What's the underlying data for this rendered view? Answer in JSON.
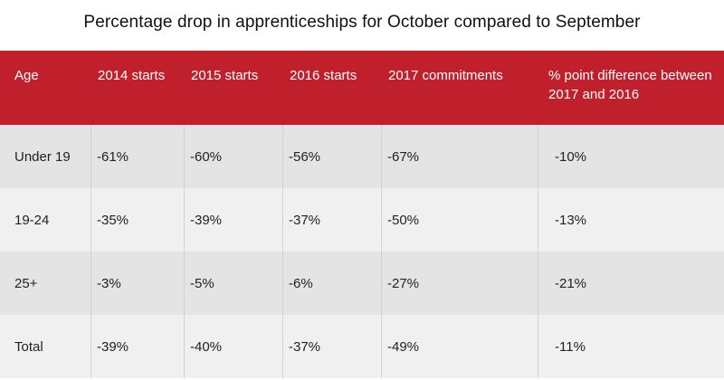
{
  "title": "Percentage drop in apprenticeships for October compared to September",
  "colors": {
    "header_bg": "#c01f2c",
    "row_dark": "#e4e4e4",
    "row_light": "#f0f0f0"
  },
  "table": {
    "headers": [
      "Age",
      "2014 starts",
      "2015 starts",
      "2016 starts",
      "2017 commitments",
      "% point difference between 2017 and 2016"
    ],
    "rows": [
      [
        "Under 19",
        "-61%",
        "-60%",
        "-56%",
        "-67%",
        "-10%"
      ],
      [
        "19-24",
        "-35%",
        "-39%",
        "-37%",
        "-50%",
        "-13%"
      ],
      [
        "25+",
        "-3%",
        "-5%",
        "-6%",
        "-27%",
        "-21%"
      ],
      [
        "Total",
        "-39%",
        "-40%",
        "-37%",
        "-49%",
        "-11%"
      ]
    ]
  }
}
